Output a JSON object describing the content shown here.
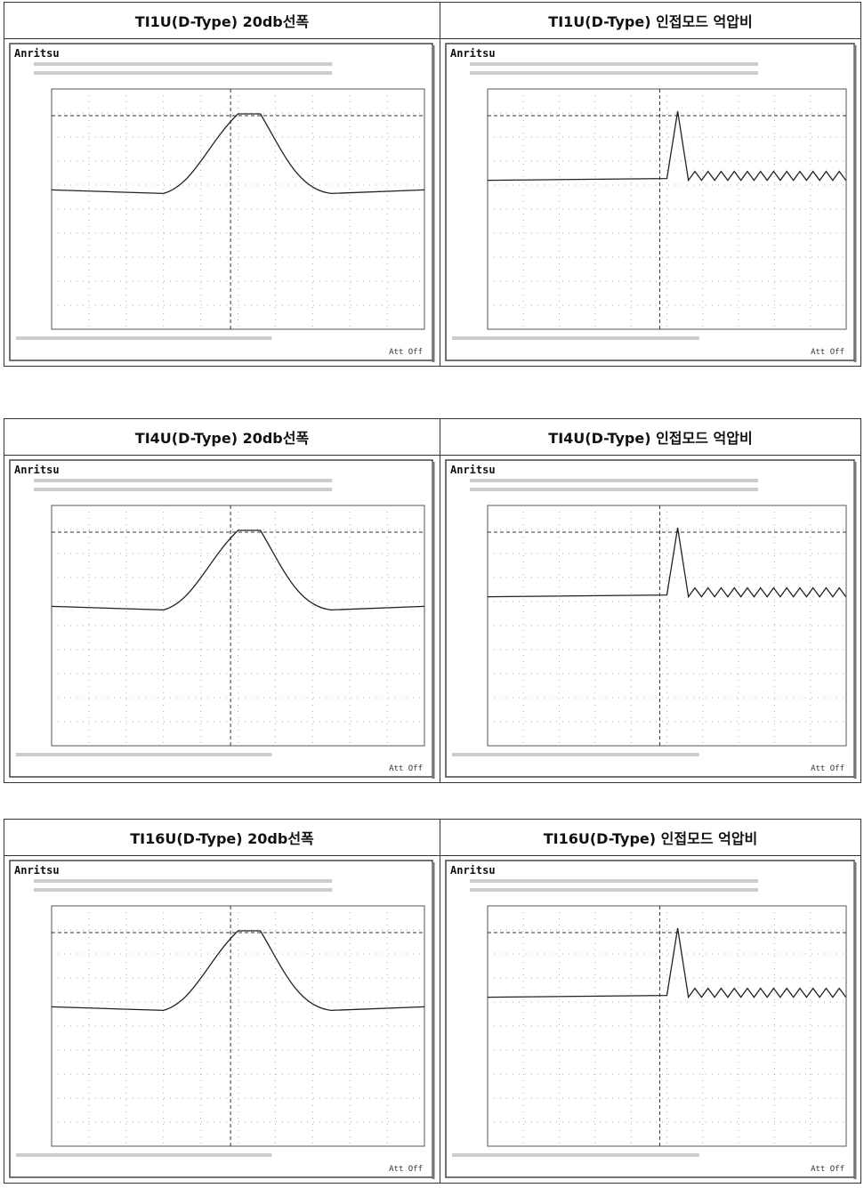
{
  "rows": [
    {
      "panels": [
        {
          "title": "TI1U(D-Type) 20db선폭",
          "brand": "Anritsu",
          "footer": "Att Off"
        },
        {
          "title": "TI1U(D-Type) 인접모드 억압비",
          "brand": "Anritsu",
          "footer": "Att Off"
        }
      ]
    },
    {
      "panels": [
        {
          "title": "TI4U(D-Type) 20db선폭",
          "brand": "Anritsu",
          "footer": "Att Off"
        },
        {
          "title": "TI4U(D-Type) 인접모드 억압비",
          "brand": "Anritsu",
          "footer": "Att Off"
        }
      ]
    },
    {
      "panels": [
        {
          "title": "TI16U(D-Type) 20db선폭",
          "brand": "Anritsu",
          "footer": "Att Off"
        },
        {
          "title": "TI16U(D-Type) 인접모드 억압비",
          "brand": "Anritsu",
          "footer": "Att Off"
        }
      ]
    }
  ]
}
